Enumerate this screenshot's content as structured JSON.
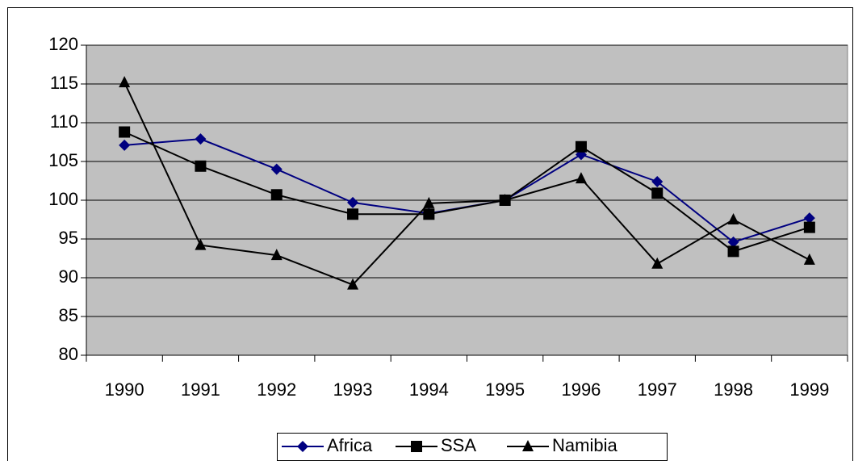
{
  "chart_data": {
    "type": "line",
    "categories": [
      "1990",
      "1991",
      "1992",
      "1993",
      "1994",
      "1995",
      "1996",
      "1997",
      "1998",
      "1999"
    ],
    "series": [
      {
        "name": "Africa",
        "color": "#000080",
        "marker": "diamond",
        "values": [
          107.1,
          107.9,
          104,
          99.7,
          98.3,
          100,
          105.9,
          102.4,
          94.6,
          97.7
        ]
      },
      {
        "name": "SSA",
        "color": "#000000",
        "marker": "square",
        "values": [
          108.8,
          104.4,
          100.7,
          98.2,
          98.2,
          100,
          106.9,
          100.9,
          93.4,
          96.5
        ]
      },
      {
        "name": "Namibia",
        "color": "#000000",
        "marker": "triangle",
        "values": [
          115.2,
          94.2,
          92.9,
          89.1,
          99.6,
          100,
          102.8,
          91.8,
          97.5,
          92.3
        ]
      }
    ],
    "ylim": [
      80,
      120
    ],
    "yticks": [
      80,
      85,
      90,
      95,
      100,
      105,
      110,
      115,
      120
    ],
    "grid": true,
    "legend": "bottom"
  }
}
